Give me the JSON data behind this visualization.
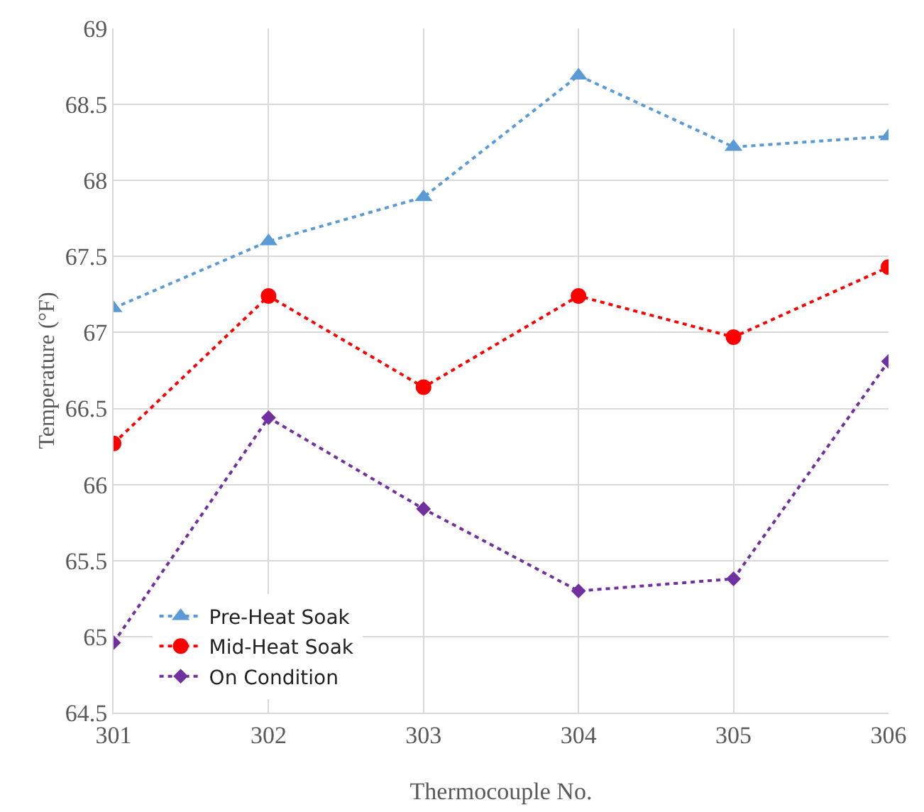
{
  "chart_data": {
    "type": "line",
    "xlabel": "Thermocouple No.",
    "ylabel": "Temperature (°F)",
    "x": [
      301,
      302,
      303,
      304,
      305,
      306
    ],
    "xlim": [
      301,
      306
    ],
    "xticks": [
      301,
      302,
      303,
      304,
      305,
      306
    ],
    "ylim": [
      64.5,
      69
    ],
    "yticks": [
      64.5,
      65,
      65.5,
      66,
      66.5,
      67,
      67.5,
      68,
      68.5,
      69
    ],
    "grid": true,
    "legend": "bottom left",
    "line_style": "dotted",
    "series": [
      {
        "name": "Pre-Heat Soak",
        "color": "#5b9bd5",
        "marker": "triangle",
        "values": [
          67.16,
          67.6,
          67.89,
          68.69,
          68.22,
          68.29
        ]
      },
      {
        "name": "Mid-Heat Soak",
        "color": "#ff0000",
        "marker": "circle",
        "values": [
          66.27,
          67.24,
          66.64,
          67.24,
          66.97,
          67.43
        ]
      },
      {
        "name": "On Condition",
        "color": "#7030a0",
        "marker": "diamond",
        "values": [
          64.96,
          66.44,
          65.84,
          65.3,
          65.38,
          66.81
        ]
      }
    ]
  }
}
